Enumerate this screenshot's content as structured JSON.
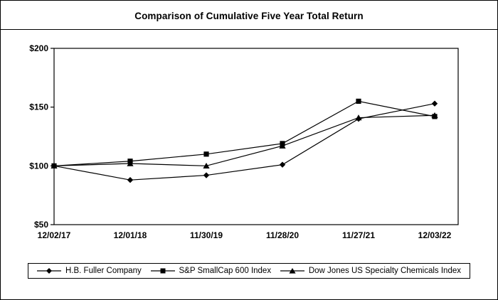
{
  "title": "Comparison of Cumulative Five Year Total Return",
  "colors": {
    "line": "#000000",
    "background": "#ffffff",
    "border": "#000000"
  },
  "chart_data": {
    "type": "line",
    "title": "Comparison of Cumulative Five Year Total Return",
    "categories": [
      "12/02/17",
      "12/01/18",
      "11/30/19",
      "11/28/20",
      "11/27/21",
      "12/03/22"
    ],
    "series": [
      {
        "name": "H.B. Fuller Company",
        "marker": "diamond",
        "values": [
          100,
          88,
          92,
          101,
          140,
          153
        ]
      },
      {
        "name": "S&P SmallCap 600 Index",
        "marker": "square",
        "values": [
          100,
          104,
          110,
          119,
          155,
          142
        ]
      },
      {
        "name": "Dow Jones US Specialty Chemicals Index",
        "marker": "triangle",
        "values": [
          100,
          102,
          100,
          117,
          141,
          143
        ]
      }
    ],
    "xlabel": "",
    "ylabel": "",
    "ylim": [
      50,
      200
    ],
    "y_ticks": [
      50,
      100,
      150,
      200
    ],
    "y_tick_labels": [
      "$50",
      "$100",
      "$150",
      "$200"
    ],
    "grid": false,
    "legend_position": "bottom",
    "line_color": "#000000"
  }
}
